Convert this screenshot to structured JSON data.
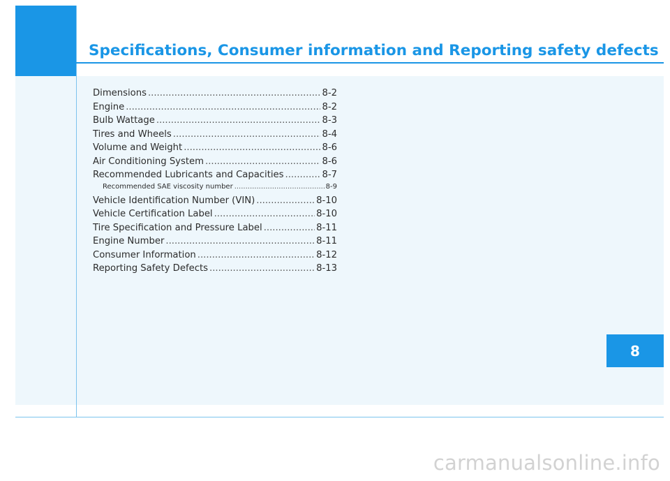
{
  "title": "Specifications, Consumer information and Reporting safety defects",
  "toc": [
    {
      "label": "Dimensions",
      "page": "8-2",
      "sub": false
    },
    {
      "label": "Engine",
      "page": "8-2",
      "sub": false
    },
    {
      "label": "Bulb Wattage",
      "page": "8-3",
      "sub": false
    },
    {
      "label": "Tires and Wheels",
      "page": "8-4",
      "sub": false
    },
    {
      "label": "Volume and Weight",
      "page": "8-6",
      "sub": false
    },
    {
      "label": "Air Conditioning System",
      "page": "8-6",
      "sub": false
    },
    {
      "label": "Recommended Lubricants and Capacities",
      "page": "8-7",
      "sub": false
    },
    {
      "label": "Recommended SAE viscosity number",
      "page": "8-9",
      "sub": true
    },
    {
      "label": "Vehicle Identification Number (VIN)",
      "page": "8-10",
      "sub": false
    },
    {
      "label": "Vehicle Certification Label",
      "page": "8-10",
      "sub": false
    },
    {
      "label": "Tire Specification and Pressure Label",
      "page": "8-11",
      "sub": false
    },
    {
      "label": "Engine Number",
      "page": "8-11",
      "sub": false
    },
    {
      "label": "Consumer Information",
      "page": "8-12",
      "sub": false
    },
    {
      "label": "Reporting Safety Defects",
      "page": "8-13",
      "sub": false
    }
  ],
  "chapter_tab": "8",
  "watermark": "carmanualsonline.info",
  "colors": {
    "accent": "#1a96e6",
    "panel": "#eef7fc",
    "text": "#2c2c2c"
  }
}
